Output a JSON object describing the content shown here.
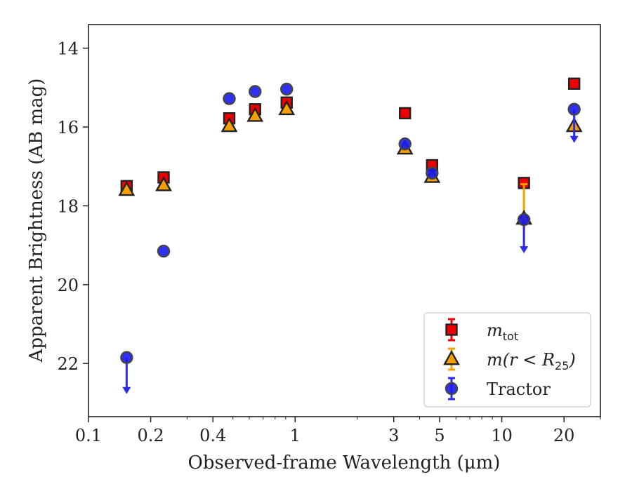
{
  "chart_data": {
    "type": "scatter",
    "title": "",
    "xlabel": "Observed-frame Wavelength (μm)",
    "ylabel": "Apparent Brightness (AB mag)",
    "x_scale": "log",
    "xlim": [
      0.1,
      30
    ],
    "ylim": [
      23.35,
      13.4
    ],
    "y_inverted": true,
    "grid": false,
    "legend_position": "lower-right",
    "x_ticks": [
      {
        "value": 0.1,
        "label": "0.1"
      },
      {
        "value": 0.2,
        "label": "0.2"
      },
      {
        "value": 0.4,
        "label": "0.4"
      },
      {
        "value": 1,
        "label": "1"
      },
      {
        "value": 3,
        "label": "3"
      },
      {
        "value": 5,
        "label": "5"
      },
      {
        "value": 10,
        "label": "10"
      },
      {
        "value": 20,
        "label": "20"
      }
    ],
    "y_ticks": [
      {
        "value": 14,
        "label": "14"
      },
      {
        "value": 16,
        "label": "16"
      },
      {
        "value": 18,
        "label": "18"
      },
      {
        "value": 20,
        "label": "20"
      },
      {
        "value": 22,
        "label": "22"
      }
    ],
    "series": [
      {
        "name": "m_tot",
        "legend_math": "m",
        "legend_sub": "tot",
        "marker": "square",
        "color": "#ee0000",
        "errcolor": "#ee0000",
        "points": [
          {
            "x": 0.153,
            "y": 17.5
          },
          {
            "x": 0.231,
            "y": 17.28
          },
          {
            "x": 0.48,
            "y": 15.78
          },
          {
            "x": 0.64,
            "y": 15.55
          },
          {
            "x": 0.91,
            "y": 15.38
          },
          {
            "x": 3.4,
            "y": 15.65
          },
          {
            "x": 4.6,
            "y": 16.97
          },
          {
            "x": 12.8,
            "y": 17.42
          },
          {
            "x": 22.4,
            "y": 14.9
          }
        ]
      },
      {
        "name": "m(r < R25)",
        "legend_math": "m(r < R",
        "legend_sub": "25",
        "legend_tail": ")",
        "marker": "triangle",
        "color": "#f5a000",
        "errcolor": "#f5a000",
        "points": [
          {
            "x": 0.153,
            "y": 17.6
          },
          {
            "x": 0.231,
            "y": 17.48
          },
          {
            "x": 0.48,
            "y": 15.98
          },
          {
            "x": 0.64,
            "y": 15.72
          },
          {
            "x": 0.91,
            "y": 15.55
          },
          {
            "x": 3.4,
            "y": 16.55
          },
          {
            "x": 4.6,
            "y": 17.27
          },
          {
            "x": 12.8,
            "y": 18.33,
            "err": [
              17.45,
              19.05
            ]
          },
          {
            "x": 22.4,
            "y": 15.98
          }
        ]
      },
      {
        "name": "Tractor",
        "marker": "circle",
        "color": "#1a1aee",
        "errcolor": "#2b2bee",
        "points": [
          {
            "x": 0.153,
            "y": 21.85,
            "upper_limit": true
          },
          {
            "x": 0.231,
            "y": 19.15
          },
          {
            "x": 0.48,
            "y": 15.28
          },
          {
            "x": 0.64,
            "y": 15.1
          },
          {
            "x": 0.91,
            "y": 15.04
          },
          {
            "x": 3.4,
            "y": 16.43
          },
          {
            "x": 4.6,
            "y": 17.17
          },
          {
            "x": 12.8,
            "y": 18.35,
            "upper_limit": true
          },
          {
            "x": 22.4,
            "y": 15.55,
            "upper_limit": true
          }
        ]
      }
    ]
  }
}
